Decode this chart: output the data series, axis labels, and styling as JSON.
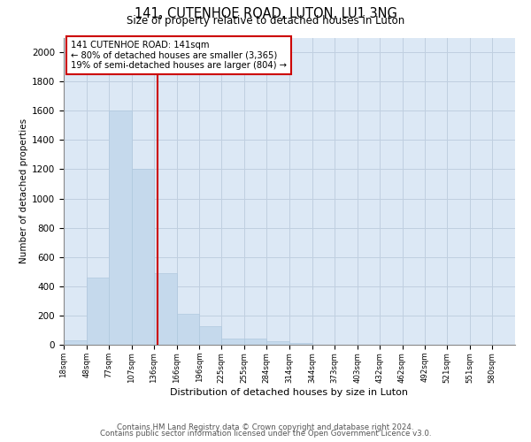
{
  "title": "141, CUTENHOE ROAD, LUTON, LU1 3NG",
  "subtitle": "Size of property relative to detached houses in Luton",
  "xlabel": "Distribution of detached houses by size in Luton",
  "ylabel": "Number of detached properties",
  "footer_line1": "Contains HM Land Registry data © Crown copyright and database right 2024.",
  "footer_line2": "Contains public sector information licensed under the Open Government Licence v3.0.",
  "annotation_line1": "141 CUTENHOE ROAD: 141sqm",
  "annotation_line2": "← 80% of detached houses are smaller (3,365)",
  "annotation_line3": "19% of semi-detached houses are larger (804) →",
  "property_size": 141,
  "bar_color": "#c5d9ec",
  "bar_edge_color": "#b0c8de",
  "vline_color": "#cc0000",
  "annotation_box_edge_color": "#cc0000",
  "background_color": "#ffffff",
  "plot_bg_color": "#dce8f5",
  "grid_color": "#c0cfe0",
  "bins": [
    18,
    48,
    77,
    107,
    136,
    166,
    196,
    225,
    255,
    284,
    314,
    344,
    373,
    403,
    432,
    462,
    492,
    521,
    551,
    580,
    610
  ],
  "counts": [
    30,
    460,
    1600,
    1200,
    490,
    210,
    125,
    45,
    40,
    25,
    12,
    0,
    0,
    0,
    0,
    0,
    0,
    0,
    0,
    0
  ],
  "ylim": [
    0,
    2100
  ],
  "yticks": [
    0,
    200,
    400,
    600,
    800,
    1000,
    1200,
    1400,
    1600,
    1800,
    2000
  ]
}
